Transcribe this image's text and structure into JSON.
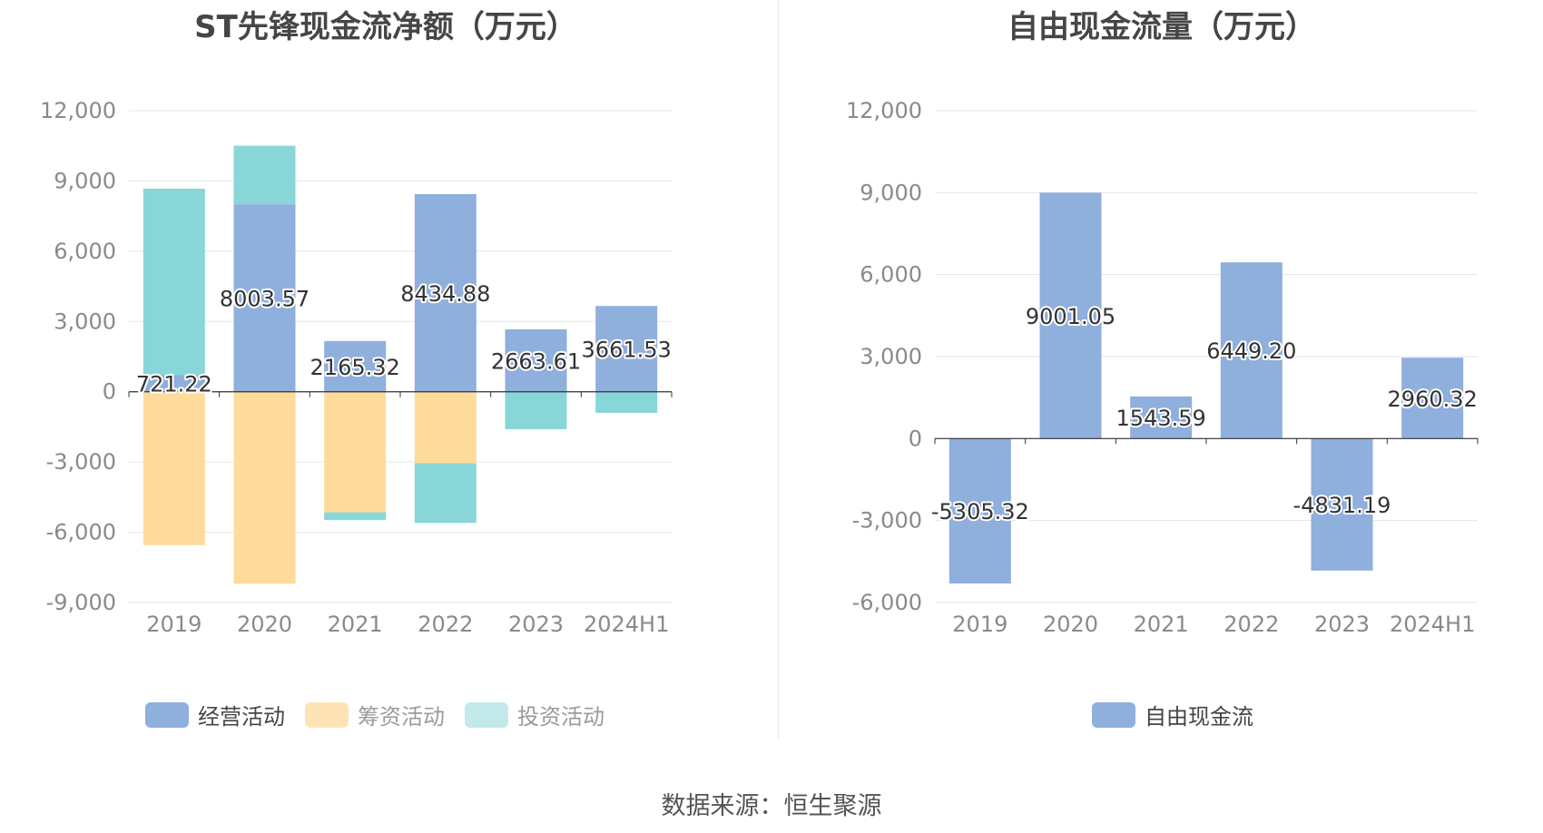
{
  "titles": {
    "left": "ST先锋现金流净额（万元）",
    "right": "自由现金流量（万元）"
  },
  "source": "数据来源：恒生聚源",
  "colors": {
    "operating": "#8fafdc",
    "financing": "#fedb9b",
    "investing": "#88d6d8",
    "axis": "#333333",
    "grid": "#e3e6ee"
  },
  "legend_left": [
    {
      "name": "经营活动",
      "color": "#8fafdc"
    },
    {
      "name": "筹资活动",
      "color": "#fedb9b"
    },
    {
      "name": "投资活动",
      "color": "#c3e9ea"
    }
  ],
  "legend_right": [
    {
      "name": "自由现金流",
      "color": "#8fafdc"
    }
  ],
  "chart_data": [
    {
      "type": "bar",
      "stacked": true,
      "title": "ST先锋现金流净额（万元）",
      "categories": [
        "2019",
        "2020",
        "2021",
        "2022",
        "2023",
        "2024H1"
      ],
      "ylim": [
        -9000,
        12000
      ],
      "yticks": [
        12000,
        9000,
        6000,
        3000,
        0,
        -3000,
        -6000,
        -9000
      ],
      "ytick_labels": [
        "12,000",
        "9,000",
        "6,000",
        "3,000",
        "0",
        "-3,000",
        "-6,000",
        "-9,000"
      ],
      "series": [
        {
          "name": "经营活动",
          "values": [
            721.22,
            8003.57,
            2165.32,
            8434.88,
            2663.61,
            3661.53
          ],
          "labels": [
            "721.22",
            "8003.57",
            "2165.32",
            "8434.88",
            "2663.61",
            "3661.53"
          ]
        },
        {
          "name": "筹资活动",
          "values": [
            -6550,
            -8200,
            -5150,
            -3050,
            0,
            0
          ]
        },
        {
          "name": "投资活动",
          "values": [
            7950,
            2500,
            -330,
            -2550,
            -1600,
            -900
          ]
        }
      ],
      "legend": "bottom",
      "grid": true
    },
    {
      "type": "bar",
      "title": "自由现金流量（万元）",
      "categories": [
        "2019",
        "2020",
        "2021",
        "2022",
        "2023",
        "2024H1"
      ],
      "ylim": [
        -6000,
        12000
      ],
      "yticks": [
        12000,
        9000,
        6000,
        3000,
        0,
        -3000,
        -6000
      ],
      "ytick_labels": [
        "12,000",
        "9,000",
        "6,000",
        "3,000",
        "0",
        "-3,000",
        "-6,000"
      ],
      "series": [
        {
          "name": "自由现金流",
          "values": [
            -5305.32,
            9001.05,
            1543.59,
            6449.2,
            -4831.19,
            2960.32
          ],
          "labels": [
            "-5305.32",
            "9001.05",
            "1543.59",
            "6449.20",
            "-4831.19",
            "2960.32"
          ]
        }
      ],
      "legend": "bottom",
      "grid": true
    }
  ]
}
